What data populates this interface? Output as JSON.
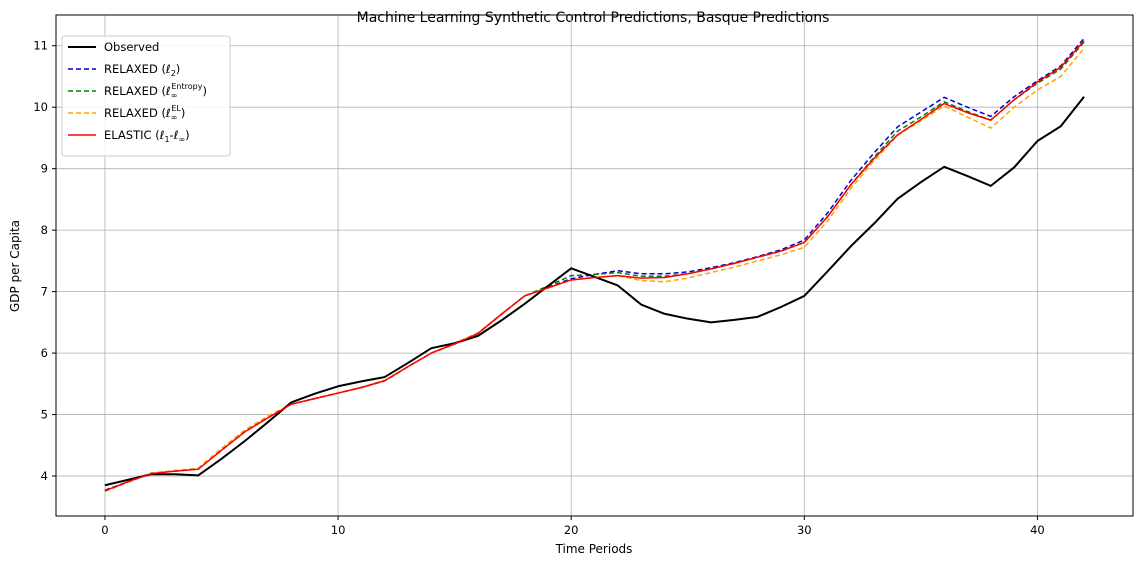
{
  "chart_data": {
    "type": "line",
    "title": "Machine Learning Synthetic Control Predictions, Basque Predictions",
    "xlabel": "Time Periods",
    "ylabel": "GDP per Capita",
    "xlim": [
      -2.1,
      44.1
    ],
    "ylim": [
      3.35,
      11.5
    ],
    "xticks": [
      0,
      10,
      20,
      30,
      40
    ],
    "yticks": [
      4,
      5,
      6,
      7,
      8,
      9,
      10,
      11
    ],
    "grid": true,
    "legend_position": "top-left",
    "x": [
      0,
      1,
      2,
      3,
      4,
      5,
      6,
      7,
      8,
      9,
      10,
      11,
      12,
      13,
      14,
      15,
      16,
      17,
      18,
      19,
      20,
      21,
      22,
      23,
      24,
      25,
      26,
      27,
      28,
      29,
      30,
      31,
      32,
      33,
      34,
      35,
      36,
      37,
      38,
      39,
      40,
      41,
      42
    ],
    "series": [
      {
        "name": "Observed",
        "legend_main": "Observed",
        "legend_sup": "",
        "legend_post": "",
        "color": "#000000",
        "dash": "solid",
        "width": 2,
        "values": [
          3.85,
          3.94,
          4.03,
          4.03,
          4.01,
          4.28,
          4.57,
          4.88,
          5.2,
          5.34,
          5.46,
          5.54,
          5.61,
          5.84,
          6.08,
          6.16,
          6.28,
          6.53,
          6.8,
          7.09,
          7.38,
          7.24,
          7.1,
          6.79,
          6.64,
          6.56,
          6.5,
          6.54,
          6.59,
          6.75,
          6.93,
          7.33,
          7.74,
          8.11,
          8.51,
          8.78,
          9.03,
          8.88,
          8.72,
          9.02,
          9.45,
          9.69,
          10.17
        ]
      },
      {
        "name": "RELAXED (ℓ2)",
        "legend_main": "RELAXED (ℓ",
        "legend_sub": "2",
        "legend_sup": "",
        "legend_post": ")",
        "color": "#0000cd",
        "dash": "dashed",
        "width": 1.5,
        "values": [
          3.77,
          3.91,
          4.05,
          4.08,
          4.12,
          4.42,
          4.72,
          4.95,
          5.17,
          5.26,
          5.35,
          5.44,
          5.55,
          5.78,
          6.0,
          6.15,
          6.32,
          6.63,
          6.93,
          7.07,
          7.21,
          7.28,
          7.34,
          7.29,
          7.29,
          7.32,
          7.39,
          7.47,
          7.57,
          7.68,
          7.84,
          8.28,
          8.81,
          9.26,
          9.68,
          9.92,
          10.16,
          10.0,
          9.85,
          10.17,
          10.43,
          10.67,
          11.12
        ]
      },
      {
        "name": "RELAXED (ℓ∞Entropy)",
        "legend_main": "RELAXED (ℓ",
        "legend_sub": "∞",
        "legend_sup": "Entropy",
        "legend_post": ")",
        "color": "#008000",
        "dash": "dashed",
        "width": 1.5,
        "values": [
          3.76,
          3.9,
          4.05,
          4.08,
          4.12,
          4.42,
          4.72,
          4.95,
          5.17,
          5.26,
          5.35,
          5.44,
          5.55,
          5.78,
          6.0,
          6.15,
          6.32,
          6.63,
          6.93,
          7.09,
          7.26,
          7.28,
          7.31,
          7.25,
          7.25,
          7.29,
          7.37,
          7.46,
          7.56,
          7.66,
          7.8,
          8.22,
          8.74,
          9.19,
          9.61,
          9.84,
          10.09,
          9.93,
          9.79,
          10.12,
          10.39,
          10.62,
          11.06
        ]
      },
      {
        "name": "RELAXED (ℓ∞EL)",
        "legend_main": "RELAXED (ℓ",
        "legend_sub": "∞",
        "legend_sup": "EL",
        "legend_post": ")",
        "color": "#ffa500",
        "dash": "dashed",
        "width": 1.5,
        "values": [
          3.75,
          3.9,
          4.05,
          4.09,
          4.13,
          4.45,
          4.75,
          4.98,
          5.17,
          5.26,
          5.35,
          5.44,
          5.56,
          5.78,
          6.0,
          6.16,
          6.33,
          6.63,
          6.93,
          7.06,
          7.19,
          7.23,
          7.26,
          7.18,
          7.16,
          7.22,
          7.31,
          7.4,
          7.5,
          7.6,
          7.72,
          8.15,
          8.68,
          9.13,
          9.54,
          9.78,
          10.02,
          9.84,
          9.66,
          10.0,
          10.28,
          10.5,
          10.96
        ]
      },
      {
        "name": "ELASTIC (ℓ1-ℓ∞)",
        "legend_main": "ELASTIC (ℓ",
        "legend_sub": "1",
        "legend_mid": "-ℓ",
        "legend_sub2": "∞",
        "legend_sup": "",
        "legend_post": ")",
        "color": "#ff0000",
        "dash": "solid",
        "width": 1.5,
        "values": [
          3.76,
          3.91,
          4.04,
          4.08,
          4.11,
          4.42,
          4.72,
          4.95,
          5.17,
          5.26,
          5.35,
          5.44,
          5.55,
          5.78,
          6.0,
          6.15,
          6.32,
          6.63,
          6.93,
          7.06,
          7.19,
          7.23,
          7.26,
          7.22,
          7.23,
          7.29,
          7.37,
          7.46,
          7.56,
          7.66,
          7.8,
          8.22,
          8.74,
          9.17,
          9.55,
          9.8,
          10.06,
          9.91,
          9.79,
          10.12,
          10.41,
          10.65,
          11.08
        ]
      }
    ]
  }
}
